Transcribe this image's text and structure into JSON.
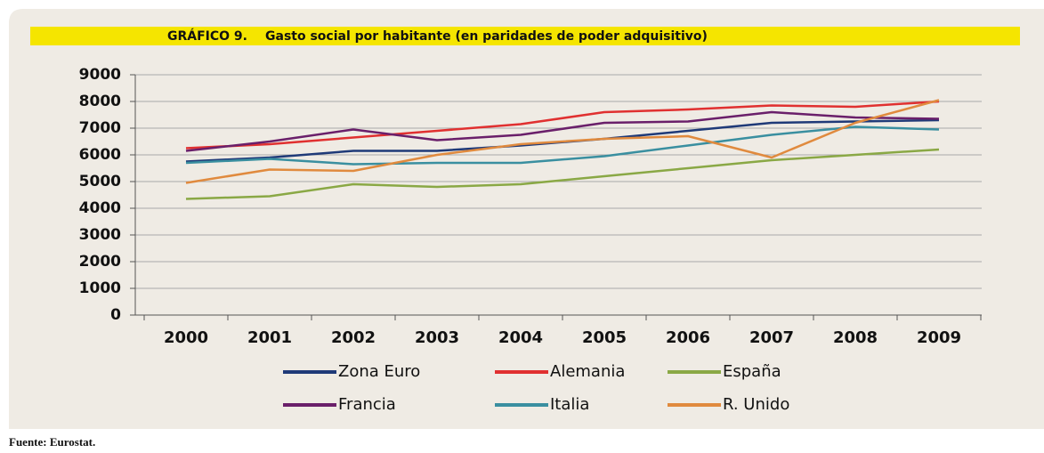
{
  "chart_data": {
    "type": "line",
    "title_label": "GRÁFICO 9.",
    "title": "Gasto social por habitante (en paridades de poder adquisitivo)",
    "categories": [
      "2000",
      "2001",
      "2002",
      "2003",
      "2004",
      "2005",
      "2006",
      "2007",
      "2008",
      "2009"
    ],
    "series": [
      {
        "name": "Zona Euro",
        "color": "#1f3a78",
        "values": [
          5750,
          5900,
          6150,
          6150,
          6350,
          6600,
          6900,
          7200,
          7250,
          7300
        ]
      },
      {
        "name": "Alemania",
        "color": "#e03030",
        "values": [
          6250,
          6400,
          6650,
          6900,
          7150,
          7600,
          7700,
          7850,
          7800,
          8000
        ]
      },
      {
        "name": "España",
        "color": "#8aa845",
        "values": [
          4350,
          4450,
          4900,
          4800,
          4900,
          5200,
          5500,
          5800,
          6000,
          6200
        ]
      },
      {
        "name": "Francia",
        "color": "#6a1f6a",
        "values": [
          6150,
          6500,
          6950,
          6550,
          6750,
          7200,
          7250,
          7600,
          7400,
          7350
        ]
      },
      {
        "name": "Italia",
        "color": "#3a8fa0",
        "values": [
          5700,
          5850,
          5650,
          5700,
          5700,
          5950,
          6350,
          6750,
          7050,
          6950
        ]
      },
      {
        "name": "R. Unido",
        "color": "#e08a3e",
        "values": [
          4950,
          5450,
          5400,
          6000,
          6400,
          6600,
          6700,
          5900,
          7200,
          8050
        ]
      }
    ],
    "ylim": [
      0,
      9000
    ],
    "yticks": [
      0,
      1000,
      2000,
      3000,
      4000,
      5000,
      6000,
      7000,
      8000,
      9000
    ],
    "grid": true,
    "legend": "bottom",
    "source": "Fuente: Eurostat."
  }
}
